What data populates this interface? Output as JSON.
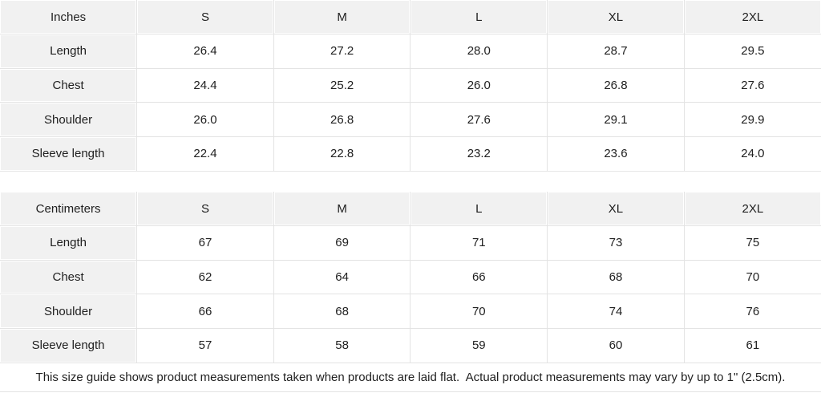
{
  "size_guide": {
    "inches": {
      "header": [
        "Inches",
        "S",
        "M",
        "L",
        "XL",
        "2XL"
      ],
      "rows": [
        {
          "label": "Length",
          "values": [
            "26.4",
            "27.2",
            "28.0",
            "28.7",
            "29.5"
          ]
        },
        {
          "label": "Chest",
          "values": [
            "24.4",
            "25.2",
            "26.0",
            "26.8",
            "27.6"
          ]
        },
        {
          "label": "Shoulder",
          "values": [
            "26.0",
            "26.8",
            "27.6",
            "29.1",
            "29.9"
          ]
        },
        {
          "label": "Sleeve length",
          "values": [
            "22.4",
            "22.8",
            "23.2",
            "23.6",
            "24.0"
          ]
        }
      ]
    },
    "centimeters": {
      "header": [
        "Centimeters",
        "S",
        "M",
        "L",
        "XL",
        "2XL"
      ],
      "rows": [
        {
          "label": "Length",
          "values": [
            "67",
            "69",
            "71",
            "73",
            "75"
          ]
        },
        {
          "label": "Chest",
          "values": [
            "62",
            "64",
            "66",
            "68",
            "70"
          ]
        },
        {
          "label": "Shoulder",
          "values": [
            "66",
            "68",
            "70",
            "74",
            "76"
          ]
        },
        {
          "label": "Sleeve length",
          "values": [
            "57",
            "58",
            "59",
            "60",
            "61"
          ]
        }
      ]
    },
    "footnote": "This size guide shows product measurements taken when products are laid flat.  Actual product measurements may vary by up to 1\" (2.5cm)."
  },
  "colors": {
    "header_cell_bg": "#f1f1f1",
    "cell_border": "#e3e3e3",
    "text": "#212121",
    "background": "#ffffff"
  }
}
